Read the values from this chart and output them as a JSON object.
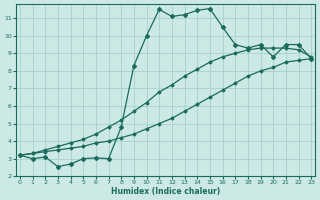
{
  "xlabel": "Humidex (Indice chaleur)",
  "bg_color": "#cce9e6",
  "grid_color": "#aad4d0",
  "line_color": "#1a6b5e",
  "xlim": [
    -0.3,
    23.3
  ],
  "ylim": [
    2.0,
    11.8
  ],
  "xticks": [
    0,
    1,
    2,
    3,
    4,
    5,
    6,
    7,
    8,
    9,
    10,
    11,
    12,
    13,
    14,
    15,
    16,
    17,
    18,
    19,
    20,
    21,
    22,
    23
  ],
  "yticks": [
    2,
    3,
    4,
    5,
    6,
    7,
    8,
    9,
    10,
    11
  ],
  "line1_x": [
    0,
    1,
    2,
    3,
    4,
    5,
    6,
    7,
    8,
    9,
    10,
    11,
    12,
    13,
    14,
    15,
    16,
    17,
    18,
    19,
    20,
    21,
    22,
    23
  ],
  "line1_y": [
    3.2,
    3.0,
    3.1,
    2.55,
    2.7,
    3.0,
    3.05,
    3.0,
    4.8,
    8.3,
    10.0,
    11.5,
    11.1,
    11.2,
    11.45,
    11.55,
    10.5,
    9.5,
    9.3,
    9.5,
    8.8,
    9.5,
    9.5,
    8.7
  ],
  "line2_x": [
    0,
    1,
    2,
    3,
    4,
    5,
    6,
    7,
    8,
    9,
    10,
    11,
    12,
    13,
    14,
    15,
    16,
    17,
    18,
    19,
    20,
    21,
    22,
    23
  ],
  "line2_y": [
    3.2,
    3.3,
    3.5,
    3.7,
    3.9,
    4.1,
    4.4,
    4.8,
    5.2,
    5.7,
    6.2,
    6.8,
    7.2,
    7.7,
    8.1,
    8.5,
    8.8,
    9.0,
    9.2,
    9.3,
    9.3,
    9.3,
    9.2,
    8.8
  ],
  "line3_x": [
    0,
    1,
    2,
    3,
    4,
    5,
    6,
    7,
    8,
    9,
    10,
    11,
    12,
    13,
    14,
    15,
    16,
    17,
    18,
    19,
    20,
    21,
    22,
    23
  ],
  "line3_y": [
    3.2,
    3.3,
    3.4,
    3.5,
    3.6,
    3.7,
    3.9,
    4.0,
    4.2,
    4.4,
    4.7,
    5.0,
    5.3,
    5.7,
    6.1,
    6.5,
    6.9,
    7.3,
    7.7,
    8.0,
    8.2,
    8.5,
    8.6,
    8.7
  ]
}
